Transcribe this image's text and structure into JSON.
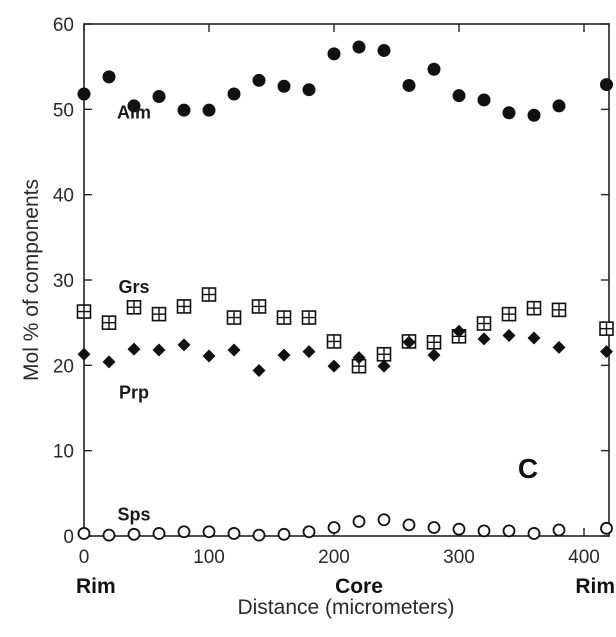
{
  "chart_data": {
    "type": "scatter",
    "title": "",
    "panel_label": "C",
    "xlabel": "Distance (micrometers)",
    "ylabel": "Mol % of components",
    "xlim": [
      0,
      420
    ],
    "ylim": [
      0,
      60
    ],
    "xticks": [
      0,
      100,
      200,
      300,
      400
    ],
    "yticks": [
      0,
      10,
      20,
      30,
      40,
      50,
      60
    ],
    "grid": false,
    "position_labels": [
      {
        "x": 0,
        "text": "Rim"
      },
      {
        "x": 220,
        "text": "Core"
      },
      {
        "x": 420,
        "text": "Rim"
      }
    ],
    "series": [
      {
        "name": "Alm",
        "marker": "filled-circle",
        "label_at": [
          40,
          49.6
        ],
        "x": [
          0,
          20,
          40,
          60,
          80,
          100,
          120,
          140,
          160,
          180,
          200,
          220,
          240,
          260,
          280,
          300,
          320,
          340,
          360,
          380,
          418
        ],
        "y": [
          51.8,
          53.8,
          50.4,
          51.5,
          49.9,
          49.9,
          51.8,
          53.4,
          52.7,
          52.3,
          56.5,
          57.3,
          56.9,
          52.8,
          54.7,
          51.6,
          51.1,
          49.6,
          49.3,
          50.4,
          52.9
        ]
      },
      {
        "name": "Grs",
        "marker": "boxed-plus",
        "label_at": [
          40,
          29.2
        ],
        "x": [
          0,
          20,
          40,
          60,
          80,
          100,
          120,
          140,
          160,
          180,
          200,
          220,
          240,
          260,
          280,
          300,
          320,
          340,
          360,
          380,
          418
        ],
        "y": [
          26.3,
          25.0,
          26.8,
          26.0,
          26.9,
          28.3,
          25.6,
          26.9,
          25.6,
          25.6,
          22.8,
          19.9,
          21.3,
          22.8,
          22.7,
          23.4,
          24.9,
          26.0,
          26.7,
          26.5,
          24.3
        ]
      },
      {
        "name": "Prp",
        "marker": "filled-diamond",
        "label_at": [
          40,
          16.8
        ],
        "x": [
          0,
          20,
          40,
          60,
          80,
          100,
          120,
          140,
          160,
          180,
          200,
          220,
          240,
          260,
          280,
          300,
          320,
          340,
          360,
          380,
          418
        ],
        "y": [
          21.3,
          20.4,
          21.9,
          21.8,
          22.4,
          21.1,
          21.8,
          19.4,
          21.2,
          21.6,
          19.9,
          20.9,
          19.9,
          22.7,
          21.2,
          24.0,
          23.1,
          23.5,
          23.2,
          22.1,
          21.6
        ]
      },
      {
        "name": "Sps",
        "marker": "open-circle",
        "label_at": [
          40,
          2.5
        ],
        "x": [
          0,
          20,
          40,
          60,
          80,
          100,
          120,
          140,
          160,
          180,
          200,
          220,
          240,
          260,
          280,
          300,
          320,
          340,
          360,
          380,
          418
        ],
        "y": [
          0.3,
          0.1,
          0.2,
          0.3,
          0.5,
          0.5,
          0.3,
          0.1,
          0.2,
          0.5,
          1.0,
          1.7,
          1.9,
          1.3,
          1.0,
          0.8,
          0.6,
          0.6,
          0.3,
          0.7,
          0.9
        ]
      }
    ]
  }
}
